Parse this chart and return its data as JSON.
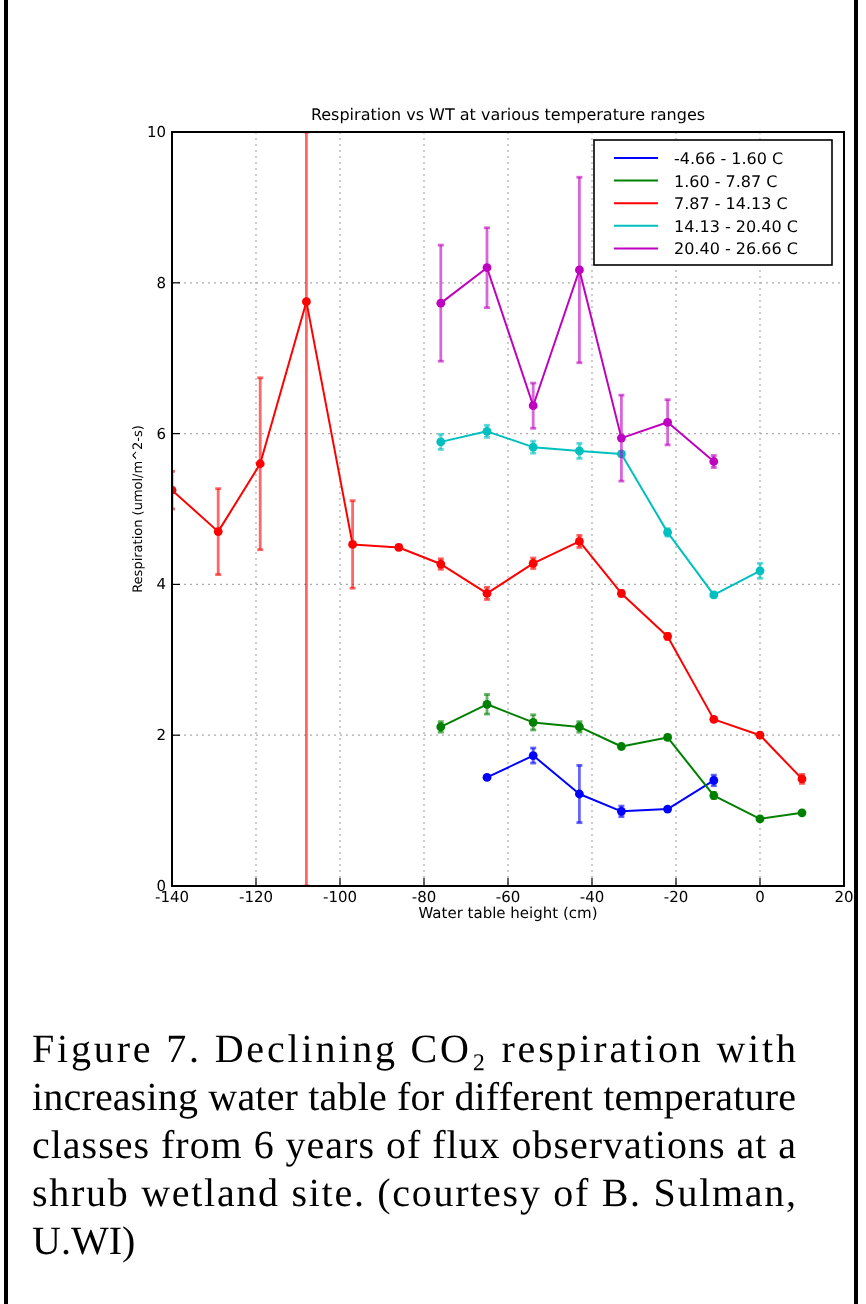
{
  "chart_data": {
    "type": "line",
    "title": "Respiration vs WT at various temperature ranges",
    "xlabel": "Water table height (cm)",
    "ylabel": "Respiration (umol/m^2-s)",
    "x": [
      -140,
      -129,
      -119,
      -108,
      -97,
      -86,
      -76,
      -65,
      -54,
      -43,
      -33,
      -22,
      -11,
      0,
      10
    ],
    "xlim": [
      -140,
      20
    ],
    "xticks": [
      -140,
      -120,
      -100,
      -80,
      -60,
      -40,
      -20,
      0,
      20
    ],
    "ylim": [
      0,
      10
    ],
    "yticks": [
      0,
      2,
      4,
      6,
      8,
      10
    ],
    "grid": true,
    "legend": "top right",
    "marker": "circle",
    "line_style": "solid",
    "series": [
      {
        "name": "-4.66 - 1.60 C",
        "color": "#0000ff",
        "values": [
          null,
          null,
          null,
          null,
          null,
          null,
          null,
          1.44,
          1.73,
          1.22,
          0.99,
          1.02,
          1.4,
          null,
          null
        ],
        "errors": [
          null,
          null,
          null,
          null,
          null,
          null,
          null,
          0.02,
          0.1,
          0.38,
          0.07,
          0.02,
          0.07,
          null,
          null
        ]
      },
      {
        "name": "1.60 - 7.87 C",
        "color": "#008000",
        "values": [
          null,
          null,
          null,
          null,
          null,
          null,
          2.11,
          2.41,
          2.17,
          2.11,
          1.85,
          1.97,
          1.2,
          0.89,
          0.97
        ],
        "errors": [
          null,
          null,
          null,
          null,
          null,
          null,
          0.07,
          0.13,
          0.1,
          0.07,
          0.03,
          0.03,
          0.04,
          0.02,
          0.02
        ]
      },
      {
        "name": "7.87 - 14.13 C",
        "color": "#ff0000",
        "values": [
          5.25,
          4.7,
          5.6,
          7.75,
          4.53,
          4.49,
          4.27,
          3.88,
          4.28,
          4.57,
          3.88,
          3.31,
          2.21,
          2.0,
          1.42
        ],
        "errors": [
          0.25,
          0.57,
          1.14,
          [
            0,
            10
          ],
          0.58,
          0.03,
          0.07,
          0.08,
          0.07,
          0.08,
          0.04,
          0.04,
          0.02,
          0.03,
          0.06
        ]
      },
      {
        "name": "14.13 - 20.40 C",
        "color": "#00bfbf",
        "values": [
          null,
          null,
          null,
          null,
          null,
          null,
          5.89,
          6.03,
          5.82,
          5.77,
          5.73,
          4.69,
          3.86,
          4.18,
          null
        ],
        "errors": [
          null,
          null,
          null,
          null,
          null,
          null,
          0.1,
          0.08,
          0.08,
          0.1,
          0.03,
          0.05,
          0.03,
          0.1,
          null
        ]
      },
      {
        "name": "20.40 - 26.66 C",
        "color": "#bf00bf",
        "values": [
          null,
          null,
          null,
          null,
          null,
          null,
          7.73,
          8.2,
          6.37,
          8.17,
          5.94,
          6.15,
          5.63,
          null,
          null
        ],
        "errors": [
          null,
          null,
          null,
          null,
          null,
          null,
          0.77,
          0.53,
          0.3,
          1.23,
          0.57,
          0.3,
          0.08,
          null,
          null
        ]
      }
    ],
    "annotations": [
      "Figure 7. Declining CO₂ respiration with increasing water table for different temperature classes from 6 years of flux observations at a shrub wetland site. (courtesy of B. Sulman, U.WI)"
    ]
  }
}
